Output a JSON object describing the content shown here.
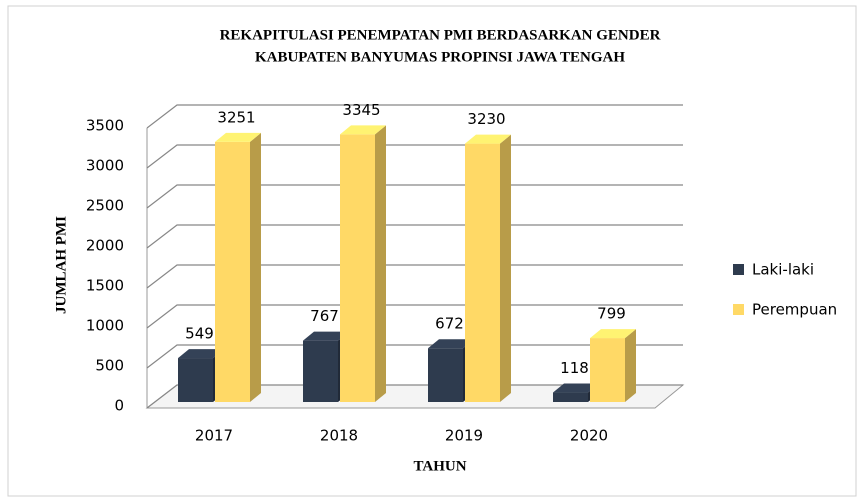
{
  "chart_data": {
    "type": "bar3d",
    "title": [
      "REKAPITULASI PENEMPATAN PMI BERDASARKAN GENDER",
      "KABUPATEN BANYUMAS PROPINSI JAWA TENGAH"
    ],
    "x_label": "TAHUN",
    "y_label": "JUMLAH PMI",
    "categories": [
      "2017",
      "2018",
      "2019",
      "2020"
    ],
    "series": [
      {
        "name": "Laki-laki",
        "color": "#2e3b4e",
        "values": [
          549,
          767,
          672,
          118
        ]
      },
      {
        "name": "Perempuan",
        "color": "#ffd966",
        "values": [
          3251,
          3345,
          3230,
          799
        ]
      }
    ],
    "ylim": [
      0,
      3500
    ],
    "yticks": [
      0,
      500,
      1000,
      1500,
      2000,
      2500,
      3000,
      3500
    ],
    "grid": true,
    "legend": "right"
  }
}
